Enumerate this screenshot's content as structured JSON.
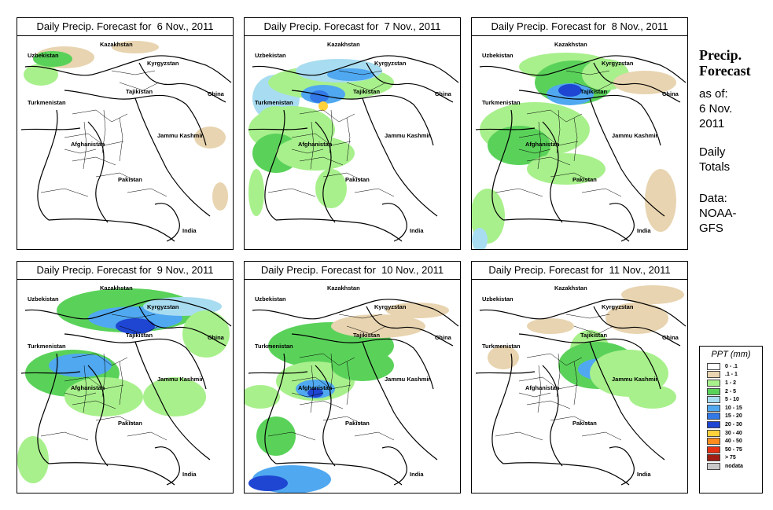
{
  "panels": [
    {
      "title": "Daily Precip. Forecast for  6 Nov., 2011",
      "intensity": 0
    },
    {
      "title": "Daily Precip. Forecast for  7 Nov., 2011",
      "intensity": 2
    },
    {
      "title": "Daily Precip. Forecast for  8 Nov., 2011",
      "intensity": 3
    },
    {
      "title": "Daily Precip. Forecast for  9 Nov., 2011",
      "intensity": 3
    },
    {
      "title": "Daily Precip. Forecast for  10 Nov., 2011",
      "intensity": 2
    },
    {
      "title": "Daily Precip. Forecast for  11 Nov., 2011",
      "intensity": 1
    }
  ],
  "map_labels": {
    "kazakhstan": "Kazakhstan",
    "uzbekistan": "Uzbekistan",
    "kyrgyzstan": "Kyrgyzstan",
    "tajikistan": "Tajikistan",
    "china": "China",
    "turkmenistan": "Turkmenistan",
    "afghanistan": "Afghanistan",
    "jammu_kashmir": "Jammu Kashmir",
    "pakistan": "Pakistan",
    "india": "India"
  },
  "sidebar": {
    "title_line1": "Precip.",
    "title_line2": "Forecast",
    "asof_line1": "as of:",
    "asof_line2": "6 Nov.",
    "asof_line3": "2011",
    "totals_line1": "Daily",
    "totals_line2": "Totals",
    "data_line1": "Data:",
    "data_line2": "NOAA-",
    "data_line3": "GFS"
  },
  "legend": {
    "title": "PPT (mm)",
    "items": [
      {
        "range": "0 - .1",
        "color": "#ffffff"
      },
      {
        "range": ".1 - 1",
        "color": "#e8d4b0"
      },
      {
        "range": "1 - 2",
        "color": "#a8f08c"
      },
      {
        "range": "2 - 5",
        "color": "#5ad25a"
      },
      {
        "range": "5 - 10",
        "color": "#a8dcf0"
      },
      {
        "range": "10 - 15",
        "color": "#50a8f0"
      },
      {
        "range": "15 - 20",
        "color": "#3278e6"
      },
      {
        "range": "20 - 30",
        "color": "#1e46d2"
      },
      {
        "range": "30 - 40",
        "color": "#ffd23c"
      },
      {
        "range": "40 - 50",
        "color": "#ff8c1e"
      },
      {
        "range": "50 - 75",
        "color": "#e63214"
      },
      {
        "range": "> 75",
        "color": "#a01e14"
      },
      {
        "range": "nodata",
        "color": "#c8c8c8"
      }
    ]
  }
}
